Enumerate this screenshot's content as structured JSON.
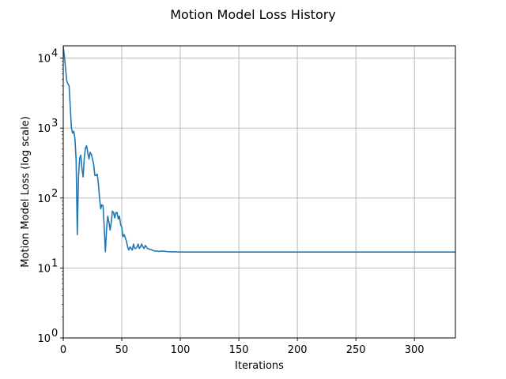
{
  "chart_data": {
    "type": "line",
    "title": "Motion Model Loss History",
    "xlabel": "Iterations",
    "ylabel": "Motion Model Loss (log scale)",
    "xlim": [
      0,
      335
    ],
    "ylim": [
      1,
      15000
    ],
    "yscale": "log",
    "grid": true,
    "x_ticks": [
      0,
      50,
      100,
      150,
      200,
      250,
      300
    ],
    "x_tick_labels": [
      "0",
      "50",
      "100",
      "150",
      "200",
      "250",
      "300"
    ],
    "y_ticks": [
      1,
      10,
      100,
      1000,
      10000
    ],
    "y_tick_labels": [
      {
        "base": "10",
        "exp": "0"
      },
      {
        "base": "10",
        "exp": "1"
      },
      {
        "base": "10",
        "exp": "2"
      },
      {
        "base": "10",
        "exp": "3"
      },
      {
        "base": "10",
        "exp": "4"
      }
    ],
    "series": [
      {
        "color": "#1f77b4",
        "x": [
          0,
          1,
          2,
          3,
          4,
          5,
          6,
          7,
          8,
          9,
          10,
          11,
          12,
          13,
          14,
          15,
          16,
          17,
          18,
          19,
          20,
          21,
          22,
          23,
          24,
          25,
          26,
          27,
          28,
          29,
          30,
          31,
          32,
          33,
          34,
          35,
          36,
          37,
          38,
          39,
          40,
          41,
          42,
          43,
          44,
          45,
          46,
          47,
          48,
          49,
          50,
          51,
          52,
          53,
          54,
          55,
          56,
          57,
          58,
          59,
          60,
          61,
          62,
          63,
          64,
          65,
          66,
          67,
          68,
          69,
          70,
          72,
          74,
          76,
          78,
          80,
          82,
          84,
          86,
          88,
          90,
          92,
          95,
          100,
          110,
          120,
          150,
          200,
          250,
          300,
          335
        ],
        "y": [
          14500,
          10500,
          7000,
          4700,
          4300,
          4000,
          2000,
          1000,
          850,
          900,
          700,
          350,
          30,
          200,
          370,
          410,
          260,
          200,
          380,
          520,
          560,
          440,
          360,
          450,
          420,
          360,
          300,
          210,
          210,
          220,
          160,
          100,
          70,
          80,
          78,
          38,
          17,
          36,
          55,
          45,
          35,
          45,
          65,
          62,
          52,
          62,
          62,
          50,
          55,
          42,
          38,
          28,
          30,
          27,
          24,
          20,
          18,
          20,
          19,
          18,
          22,
          19,
          19,
          20,
          22,
          19,
          20,
          22,
          20,
          19,
          21,
          19,
          18.5,
          18,
          17.5,
          17.5,
          17.2,
          17.5,
          17.4,
          17.2,
          17.1,
          17.0,
          17.0,
          16.9,
          16.9,
          16.9,
          16.9,
          16.9,
          16.9,
          16.9,
          16.9
        ]
      }
    ]
  }
}
